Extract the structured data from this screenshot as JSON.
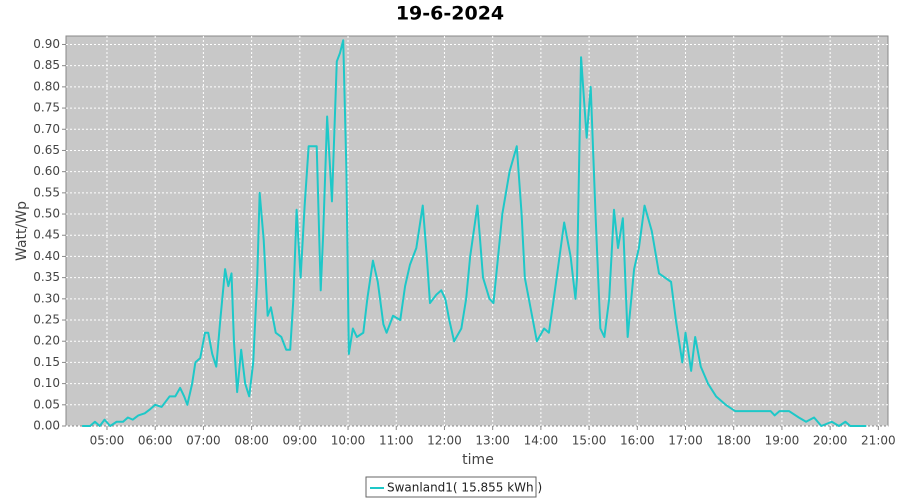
{
  "chart_data": {
    "type": "line",
    "title": "19-6-2024",
    "x_label": "time",
    "y_label": "Watt/Wp",
    "x": [
      "04:29",
      "04:39",
      "04:45",
      "04:51",
      "04:57",
      "05:04",
      "05:12",
      "05:20",
      "05:26",
      "05:32",
      "05:39",
      "05:47",
      "05:54",
      "06:00",
      "06:08",
      "06:14",
      "06:18",
      "06:25",
      "06:31",
      "06:36",
      "06:40",
      "06:46",
      "06:50",
      "06:56",
      "07:02",
      "07:06",
      "07:11",
      "07:16",
      "07:21",
      "07:27",
      "07:31",
      "07:35",
      "07:38",
      "07:42",
      "07:47",
      "07:52",
      "07:57",
      "08:02",
      "08:07",
      "08:10",
      "08:15",
      "08:20",
      "08:24",
      "08:30",
      "08:37",
      "08:43",
      "08:48",
      "08:52",
      "08:56",
      "09:01",
      "09:06",
      "09:11",
      "09:16",
      "09:21",
      "09:26",
      "09:29",
      "09:34",
      "09:40",
      "09:46",
      "09:50",
      "09:54",
      "09:58",
      "10:01",
      "10:06",
      "10:11",
      "10:19",
      "10:24",
      "10:31",
      "10:37",
      "10:44",
      "10:48",
      "10:56",
      "11:05",
      "11:11",
      "11:17",
      "11:25",
      "11:33",
      "11:38",
      "11:42",
      "11:50",
      "11:56",
      "12:01",
      "12:06",
      "12:12",
      "12:21",
      "12:27",
      "12:32",
      "12:41",
      "12:48",
      "12:56",
      "13:01",
      "13:12",
      "13:21",
      "13:30",
      "13:36",
      "13:40",
      "13:45",
      "13:55",
      "14:04",
      "14:10",
      "14:16",
      "14:29",
      "14:37",
      "14:43",
      "14:45",
      "14:50",
      "14:57",
      "15:02",
      "15:08",
      "15:14",
      "15:19",
      "15:25",
      "15:31",
      "15:36",
      "15:42",
      "15:48",
      "15:56",
      "16:02",
      "16:09",
      "16:18",
      "16:27",
      "16:42",
      "16:48",
      "16:56",
      "17:00",
      "17:07",
      "17:12",
      "17:19",
      "17:28",
      "17:38",
      "17:50",
      "18:02",
      "18:46",
      "18:51",
      "18:57",
      "19:09",
      "19:21",
      "19:30",
      "19:40",
      "19:49",
      "20:02",
      "20:11",
      "20:19",
      "20:25",
      "20:45"
    ],
    "series": [
      {
        "name": "Swanland1( 15.855 kWh )",
        "color": "#1ec8c8",
        "values": [
          0,
          0,
          0.01,
          0,
          0.015,
          0,
          0.01,
          0.01,
          0.02,
          0.015,
          0.025,
          0.03,
          0.04,
          0.05,
          0.045,
          0.06,
          0.07,
          0.07,
          0.09,
          0.07,
          0.05,
          0.1,
          0.15,
          0.16,
          0.22,
          0.22,
          0.17,
          0.14,
          0.25,
          0.37,
          0.33,
          0.36,
          0.2,
          0.08,
          0.18,
          0.1,
          0.07,
          0.15,
          0.35,
          0.55,
          0.44,
          0.26,
          0.28,
          0.22,
          0.21,
          0.18,
          0.18,
          0.3,
          0.51,
          0.35,
          0.52,
          0.66,
          0.66,
          0.66,
          0.32,
          0.45,
          0.73,
          0.53,
          0.86,
          0.88,
          0.91,
          0.6,
          0.17,
          0.23,
          0.21,
          0.22,
          0.3,
          0.39,
          0.34,
          0.24,
          0.22,
          0.26,
          0.25,
          0.33,
          0.38,
          0.42,
          0.52,
          0.4,
          0.29,
          0.31,
          0.32,
          0.3,
          0.25,
          0.2,
          0.23,
          0.3,
          0.4,
          0.52,
          0.35,
          0.3,
          0.29,
          0.5,
          0.6,
          0.66,
          0.5,
          0.35,
          0.3,
          0.2,
          0.23,
          0.22,
          0.3,
          0.48,
          0.4,
          0.3,
          0.35,
          0.87,
          0.68,
          0.8,
          0.5,
          0.23,
          0.21,
          0.3,
          0.51,
          0.42,
          0.49,
          0.21,
          0.37,
          0.42,
          0.52,
          0.46,
          0.36,
          0.34,
          0.25,
          0.15,
          0.22,
          0.13,
          0.21,
          0.14,
          0.1,
          0.07,
          0.05,
          0.035,
          0.035,
          0.025,
          0.035,
          0.035,
          0.02,
          0.01,
          0.02,
          0,
          0.01,
          0,
          0.01,
          0,
          0
        ]
      }
    ],
    "xlim": [
      "04:09",
      "21:12"
    ],
    "xticks": [
      "05:00",
      "06:00",
      "07:00",
      "08:00",
      "09:00",
      "10:00",
      "11:00",
      "12:00",
      "13:00",
      "14:00",
      "15:00",
      "16:00",
      "17:00",
      "18:00",
      "19:00",
      "20:00",
      "21:00"
    ],
    "ylim": [
      0,
      0.92
    ],
    "yticks": [
      {
        "value": 0,
        "label": "0.00"
      },
      {
        "value": 0.05,
        "label": "0.05"
      },
      {
        "value": 0.1,
        "label": "0.10"
      },
      {
        "value": 0.15,
        "label": "0.15"
      },
      {
        "value": 0.2,
        "label": "0.20"
      },
      {
        "value": 0.25,
        "label": "0.25"
      },
      {
        "value": 0.3,
        "label": "0.30"
      },
      {
        "value": 0.35,
        "label": "0.35"
      },
      {
        "value": 0.4,
        "label": "0.40"
      },
      {
        "value": 0.45,
        "label": "0.45"
      },
      {
        "value": 0.5,
        "label": "0.50"
      },
      {
        "value": 0.55,
        "label": "0.55"
      },
      {
        "value": 0.6,
        "label": "0.60"
      },
      {
        "value": 0.65,
        "label": "0.65"
      },
      {
        "value": 0.7,
        "label": "0.70"
      },
      {
        "value": 0.75,
        "label": "0.75"
      },
      {
        "value": 0.8,
        "label": "0.80"
      },
      {
        "value": 0.85,
        "label": "0.85"
      },
      {
        "value": 0.9,
        "label": "0.90"
      }
    ],
    "grid": true,
    "legend": "bottom"
  }
}
